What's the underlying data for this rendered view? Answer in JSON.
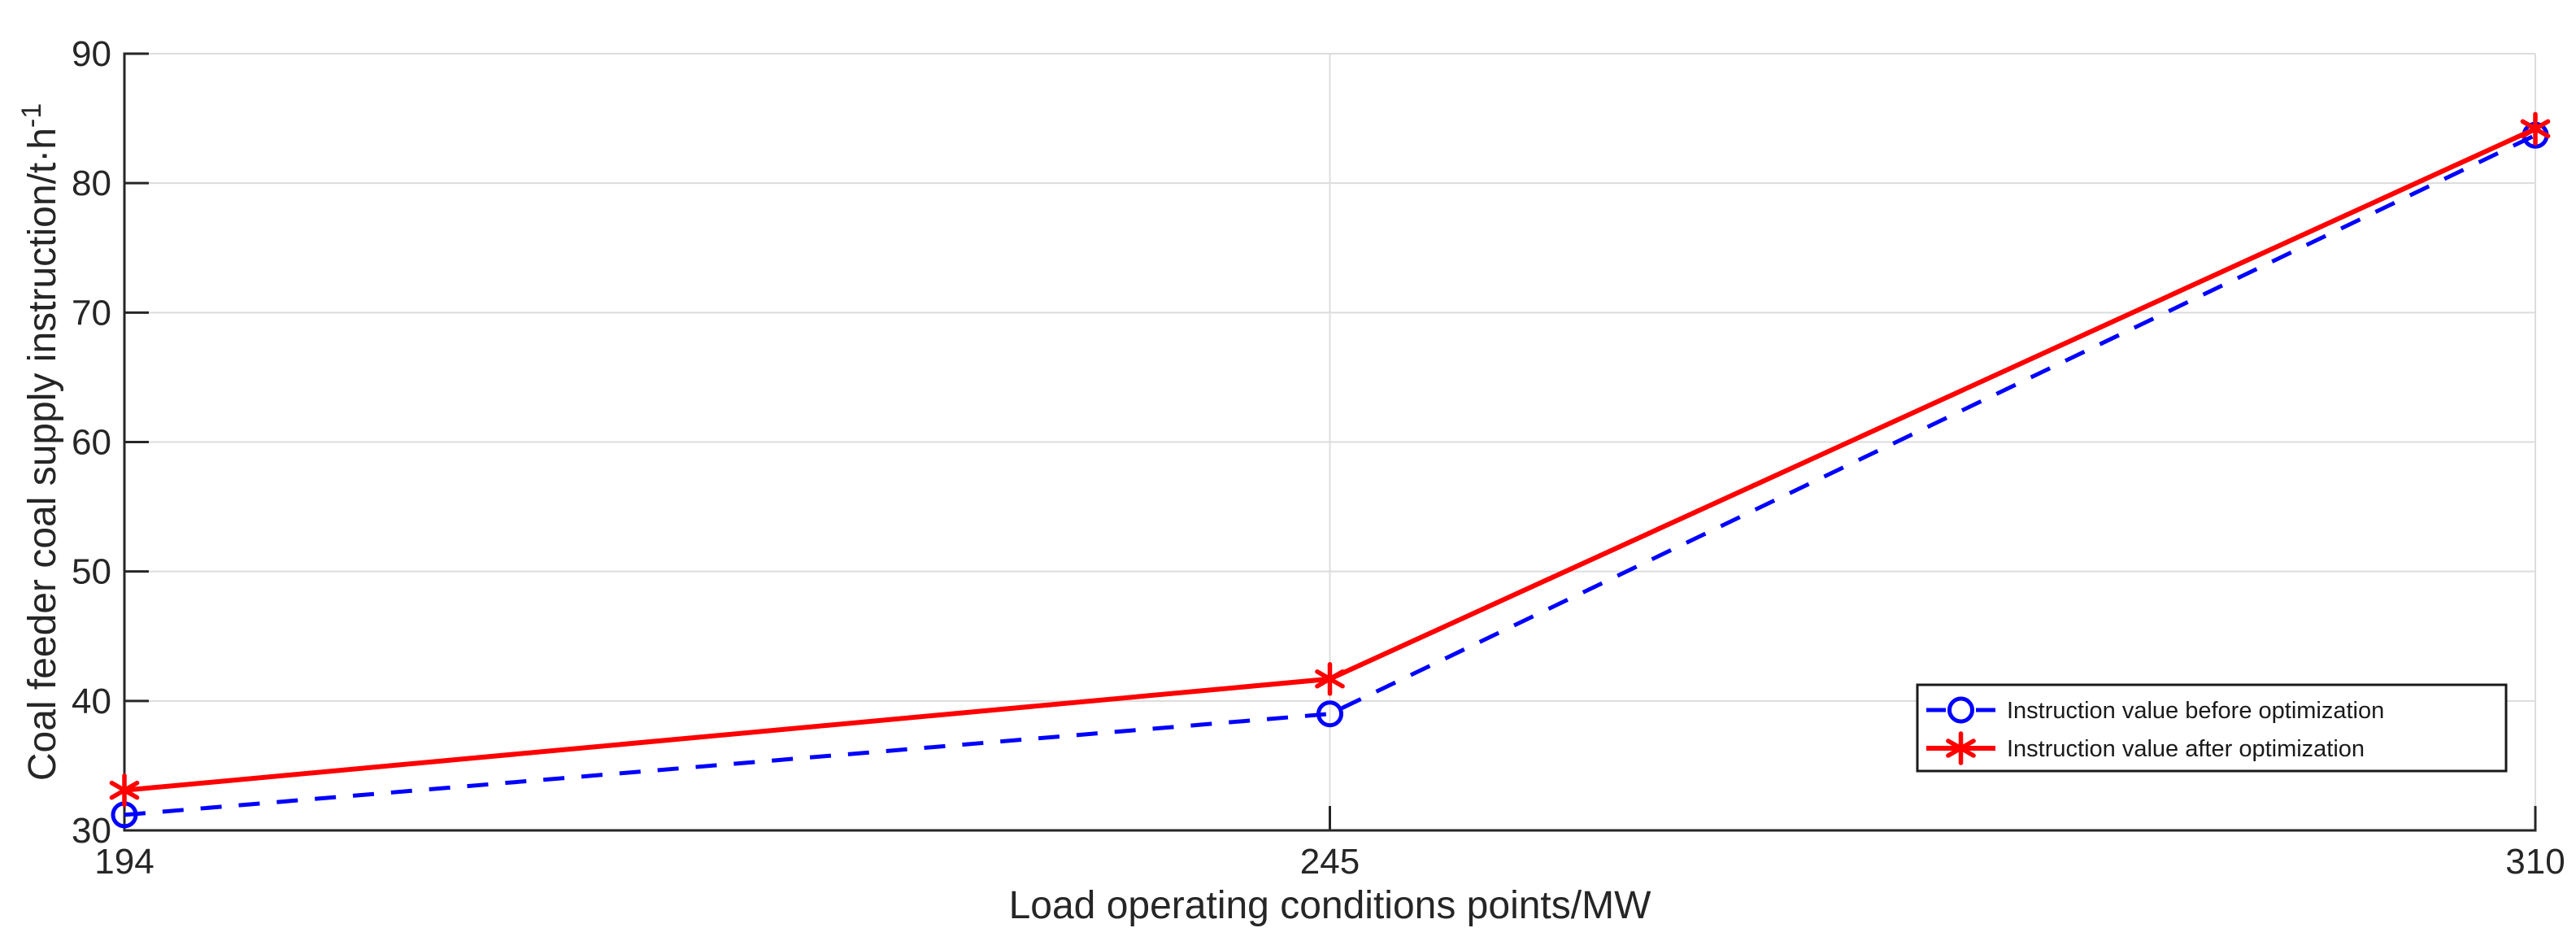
{
  "figure": {
    "background": "#ffffff",
    "axis_color": "#262626",
    "grid_color": "#dcdcdc",
    "text_color": "#262626",
    "legend_border_color": "#1a1a1a",
    "legend_text_color": "#1a1a1a"
  },
  "chart_data": {
    "type": "line",
    "title": "",
    "xlabel": "Load operating conditions points/MW",
    "ylabel": "Coal feeder coal supply instruction/t·h⁻¹",
    "ylabel_parts": {
      "base": "Coal feeder coal supply instruction/t·h",
      "sup": "-1"
    },
    "categories": [
      "194",
      "245",
      "310"
    ],
    "x_spacing": "even",
    "series": [
      {
        "name": "Instruction value before optimization",
        "values": [
          31.2,
          39.0,
          83.7
        ],
        "color": "#0000ff",
        "line_style": "dashed",
        "marker": "circle"
      },
      {
        "name": "Instruction value after optimization",
        "values": [
          33.1,
          41.7,
          84.2
        ],
        "color": "#ff0000",
        "line_style": "solid",
        "marker": "asterisk"
      }
    ],
    "ylim": [
      30,
      90
    ],
    "yticks": [
      30,
      40,
      50,
      60,
      70,
      80,
      90
    ],
    "grid": true,
    "legend_position": "right-middle",
    "legend_entries": [
      "Instruction value before optimization",
      "Instruction value after optimization"
    ]
  }
}
